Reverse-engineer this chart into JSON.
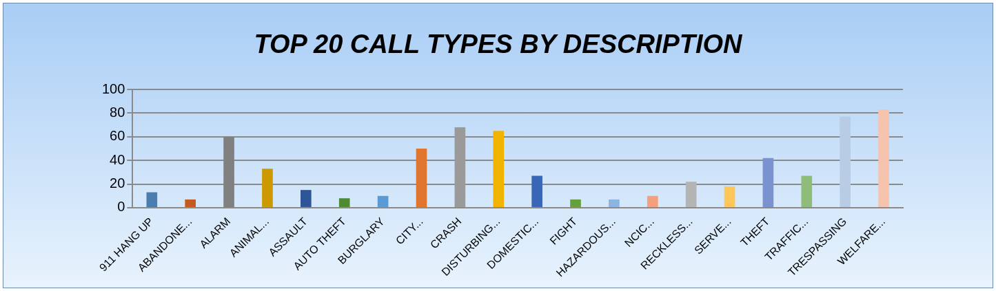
{
  "chart_data": {
    "type": "bar",
    "title": "TOP 20 CALL TYPES BY DESCRIPTION",
    "categories": [
      "911 HANG UP",
      "ABANDONE...",
      "ALARM",
      "ANIMAL...",
      "ASSAULT",
      "AUTO THEFT",
      "BURGLARY",
      "CITY...",
      "CRASH",
      "DISTURBING...",
      "DOMESTIC...",
      "FIGHT",
      "HAZARDOUS...",
      "NCIC...",
      "RECKLESS...",
      "SERVE...",
      "THEFT",
      "TRAFFIC...",
      "TRESPASSING",
      "WELFARE..."
    ],
    "values": [
      13,
      7,
      60,
      33,
      15,
      8,
      10,
      50,
      68,
      65,
      27,
      7,
      7,
      10,
      22,
      18,
      42,
      27,
      77,
      83
    ],
    "colors": [
      "#4a7eb0",
      "#c55a1e",
      "#808080",
      "#cc9900",
      "#2e5597",
      "#4e8a32",
      "#5b9bd5",
      "#e07530",
      "#9a9a9a",
      "#f0b400",
      "#3a66b8",
      "#64a03c",
      "#8bb4e0",
      "#f4a07a",
      "#b4b4b4",
      "#ffc75a",
      "#7a92d0",
      "#8fbc78",
      "#b8cce6",
      "#f5c3ae"
    ],
    "ylim": [
      0,
      100
    ],
    "yticks": [
      0,
      20,
      40,
      60,
      80,
      100
    ],
    "grid": "y"
  }
}
